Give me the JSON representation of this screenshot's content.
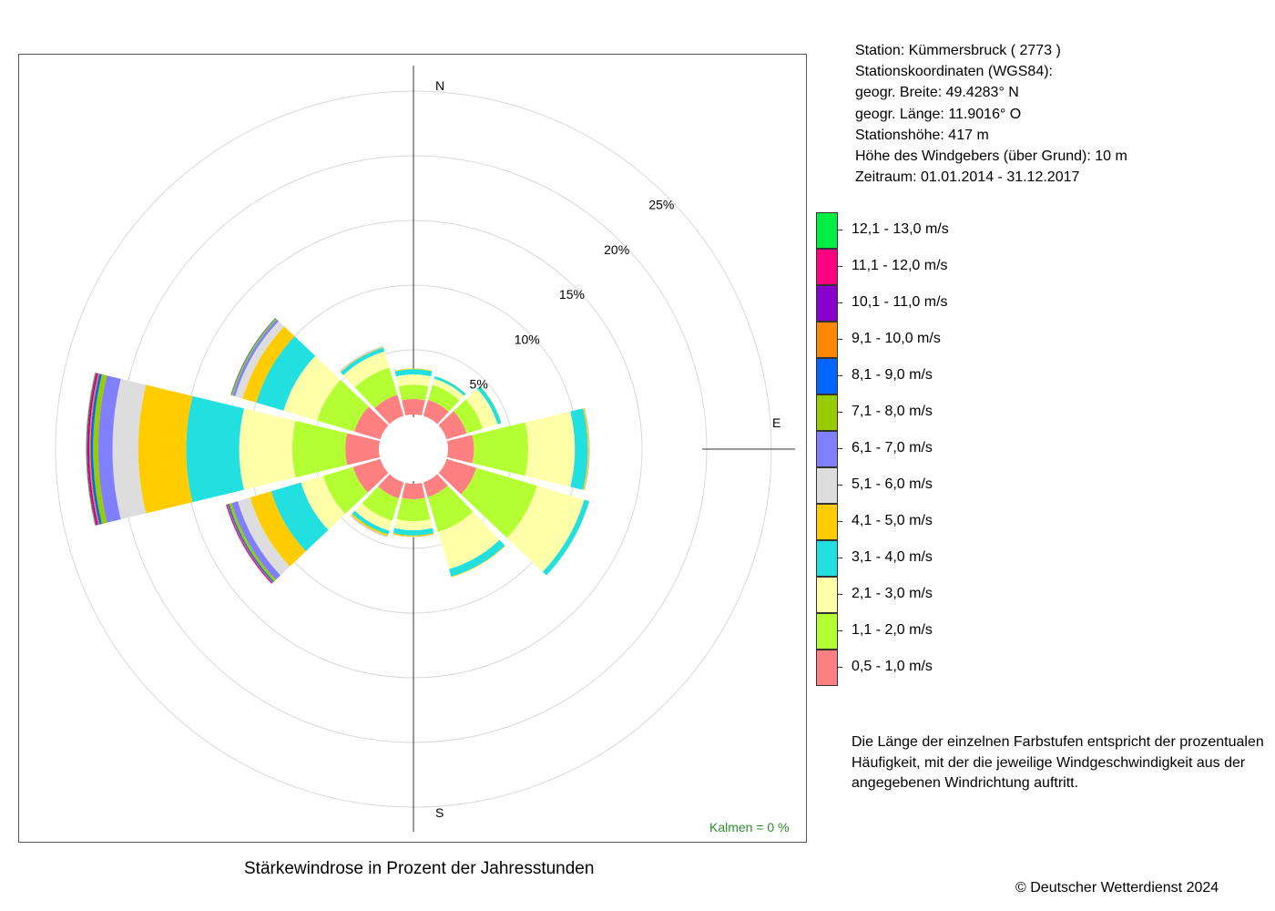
{
  "station": {
    "lines": [
      "Station:  Kümmersbruck  ( 2773 )",
      "Stationskoordinaten (WGS84):",
      "geogr. Breite: 49.4283° N",
      "geogr. Länge: 11.9016° O",
      "Stationshöhe: 417 m",
      "Höhe des Windgebers (über Grund): 10 m",
      "Zeitraum: 01.01.2014 - 31.12.2017"
    ]
  },
  "note": "Die Länge der einzelnen Farbstufen entspricht der prozentualen Häufigkeit, mit der die jeweilige Windgeschwindigkeit aus der angegebenen Windrichtung auftritt.",
  "calm_label": "Kalmen  =  0 %",
  "copyright": "© Deutscher Wetterdienst  2024",
  "chart_data": {
    "type": "wind-rose",
    "title": "Stärkewindrose in Prozent der Jahresstunden",
    "directions": [
      "N",
      "E",
      "S"
    ],
    "ring_labels": [
      "5%",
      "10%",
      "15%",
      "20%",
      "25%"
    ],
    "rings": [
      5,
      10,
      15,
      20,
      25
    ],
    "calm_percent": 0,
    "legend": [
      {
        "label": "12,1 - 13,0 m/s",
        "color": "#00ee44"
      },
      {
        "label": "11,1 - 12,0 m/s",
        "color": "#ff0080"
      },
      {
        "label": "10,1 - 11,0 m/s",
        "color": "#8800cc"
      },
      {
        "label": "9,1 - 10,0 m/s",
        "color": "#ff8800"
      },
      {
        "label": "8,1 - 9,0 m/s",
        "color": "#0066ff"
      },
      {
        "label": "7,1 - 8,0 m/s",
        "color": "#99cc00"
      },
      {
        "label": "6,1 - 7,0 m/s",
        "color": "#8080ff"
      },
      {
        "label": "5,1 - 6,0 m/s",
        "color": "#dddddd"
      },
      {
        "label": "4,1 - 5,0 m/s",
        "color": "#ffcc00"
      },
      {
        "label": "3,1 - 4,0 m/s",
        "color": "#22e0e0"
      },
      {
        "label": "2,1 - 3,0 m/s",
        "color": "#ffffaa"
      },
      {
        "label": "1,1 - 2,0 m/s",
        "color": "#b3ff33"
      },
      {
        "label": "0,5 - 1,0 m/s",
        "color": "#ff8080"
      }
    ],
    "sector_directions_deg": [
      0,
      30,
      60,
      90,
      120,
      150,
      180,
      210,
      240,
      270,
      300,
      330
    ],
    "series": [
      {
        "name": "0,5 - 1,0 m/s",
        "values": [
          1.2,
          1.3,
          1.6,
          2.0,
          2.4,
          1.2,
          1.2,
          1.3,
          2.2,
          2.6,
          2.1,
          1.7
        ]
      },
      {
        "name": "1,1 - 2,0 m/s",
        "values": [
          1.1,
          1.2,
          1.3,
          4.2,
          4.9,
          2.8,
          1.7,
          1.8,
          2.4,
          4.1,
          3.0,
          2.2
        ]
      },
      {
        "name": "2,1 - 3,0 m/s",
        "values": [
          0.8,
          0.5,
          1.2,
          3.6,
          3.8,
          3.0,
          0.7,
          0.8,
          1.8,
          4.1,
          2.7,
          1.3
        ]
      },
      {
        "name": "3,1 - 4,0 m/s",
        "values": [
          0.4,
          0.2,
          0.3,
          1.0,
          0.4,
          0.6,
          0.4,
          0.3,
          2.4,
          4.1,
          2.2,
          0.3
        ]
      },
      {
        "name": "4,1 - 5,0 m/s",
        "values": [
          0.05,
          0.02,
          0.02,
          0.1,
          0.01,
          0.05,
          0.1,
          0.15,
          1.7,
          3.7,
          1.1,
          0.05
        ]
      },
      {
        "name": "5,1 - 6,0 m/s",
        "values": [
          0.0,
          0.0,
          0.0,
          0.03,
          0.0,
          0.0,
          0.03,
          0.05,
          1.0,
          2.0,
          0.6,
          0.05
        ]
      },
      {
        "name": "6,1 - 7,0 m/s",
        "values": [
          0.0,
          0.0,
          0.0,
          0.02,
          0.0,
          0.0,
          0.0,
          0.02,
          0.5,
          1.1,
          0.2,
          0.02
        ]
      },
      {
        "name": "7,1 - 8,0 m/s",
        "values": [
          0.0,
          0.0,
          0.0,
          0.0,
          0.0,
          0.0,
          0.0,
          0.0,
          0.2,
          0.4,
          0.1,
          0.0
        ]
      },
      {
        "name": "8,1 - 9,0 m/s",
        "values": [
          0.0,
          0.0,
          0.0,
          0.0,
          0.0,
          0.0,
          0.0,
          0.0,
          0.1,
          0.2,
          0.05,
          0.0
        ]
      },
      {
        "name": "9,1 - 10,0 m/s",
        "values": [
          0.0,
          0.0,
          0.0,
          0.0,
          0.0,
          0.0,
          0.0,
          0.0,
          0.05,
          0.1,
          0.02,
          0.0
        ]
      },
      {
        "name": "10,1 - 11,0 m/s",
        "values": [
          0.0,
          0.0,
          0.0,
          0.0,
          0.0,
          0.0,
          0.0,
          0.0,
          0.05,
          0.1,
          0.0,
          0.0
        ]
      },
      {
        "name": "11,1 - 12,0 m/s",
        "values": [
          0.0,
          0.0,
          0.0,
          0.0,
          0.0,
          0.0,
          0.0,
          0.0,
          0.05,
          0.1,
          0.0,
          0.0
        ]
      },
      {
        "name": "12,1 - 13,0 m/s",
        "values": [
          0.0,
          0.0,
          0.0,
          0.0,
          0.0,
          0.0,
          0.0,
          0.0,
          0.0,
          0.05,
          0.0,
          0.0
        ]
      }
    ]
  }
}
